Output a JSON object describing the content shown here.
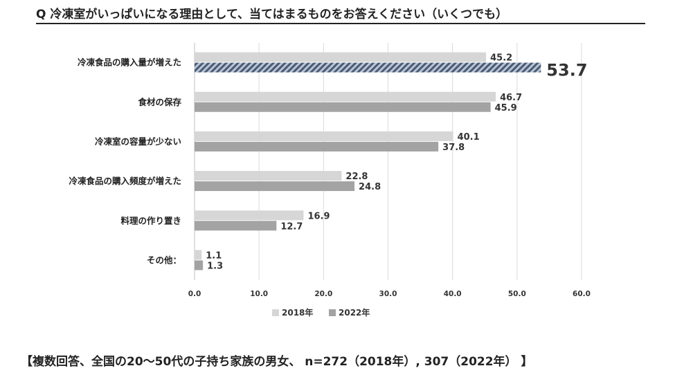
{
  "question": "Q 冷凍室がいっぱいになる理由として、当てはまるものをお答えください（いくつでも）",
  "footnote": "【複数回答、全国の20～50代の子持ち家族の男女、 n=272（2018年）, 307（2022年） 】",
  "chart_data": {
    "type": "bar",
    "orientation": "horizontal",
    "categories": [
      "冷凍食品の購入量が増えた",
      "食材の保存",
      "冷凍室の容量が少ない",
      "冷凍食品の購入頻度が増えた",
      "料理の作り置き",
      "その他："
    ],
    "series": [
      {
        "name": "2018年",
        "values": [
          45.2,
          46.7,
          40.1,
          22.8,
          16.9,
          1.1
        ],
        "color": "#d6d6d6"
      },
      {
        "name": "2022年",
        "values": [
          53.7,
          45.9,
          37.8,
          24.8,
          12.7,
          1.3
        ],
        "color": "#a3a3a3"
      }
    ],
    "highlight": {
      "series": 1,
      "category": 0,
      "color": "#8a9bb2",
      "pattern": "diagonal-hatch"
    },
    "xlim": [
      0,
      60
    ],
    "xticks": [
      "0.0",
      "10.0",
      "20.0",
      "30.0",
      "40.0",
      "50.0",
      "60.0"
    ],
    "grid": true,
    "legend_position": "bottom"
  }
}
